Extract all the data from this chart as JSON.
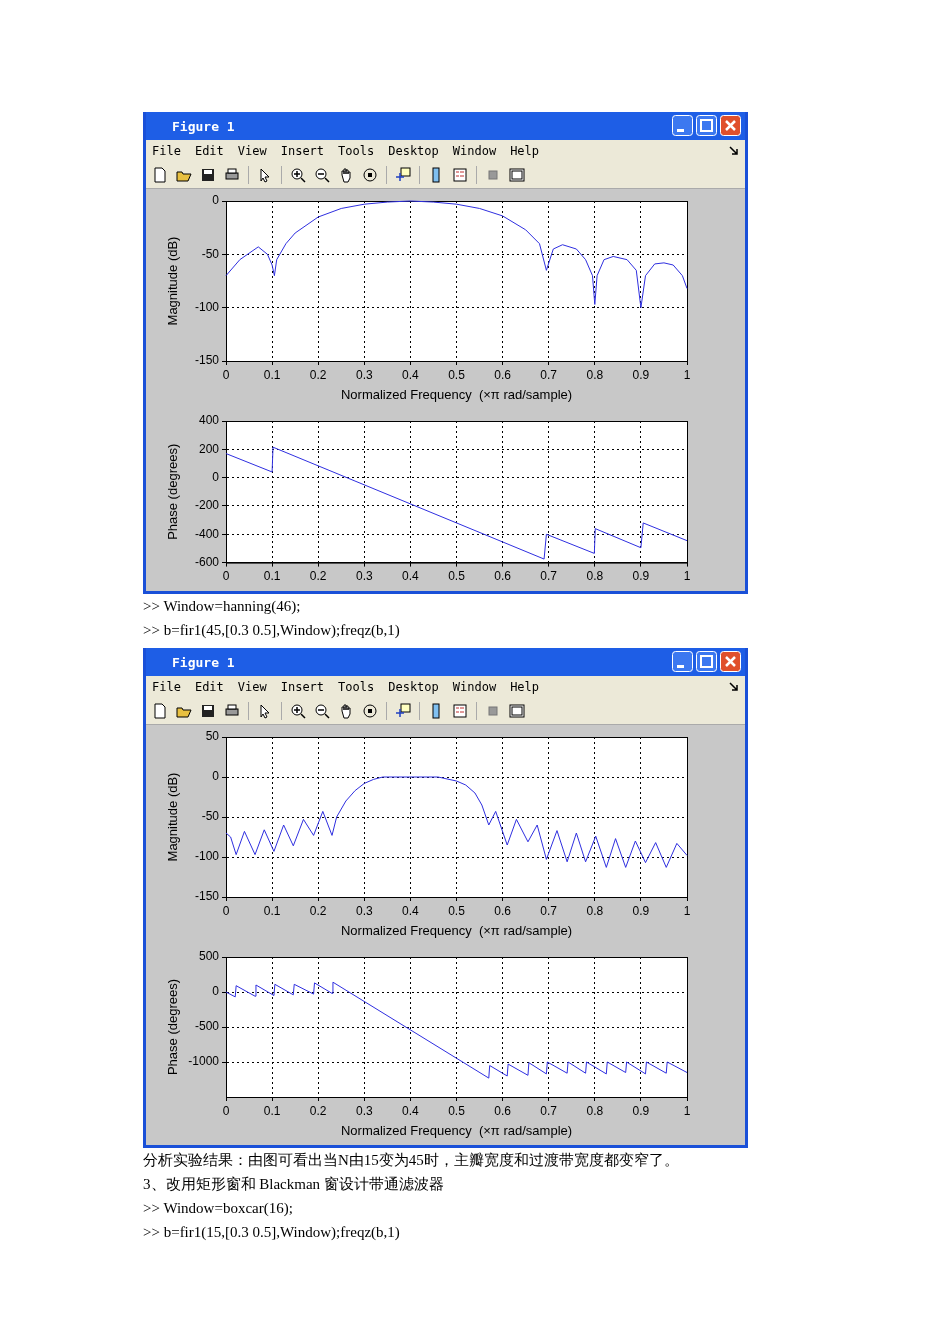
{
  "chart_data": [
    {
      "type": "line",
      "title": "Figure 1",
      "annotations": [
        "File",
        "Edit",
        "View",
        "Insert",
        "Tools",
        "Desktop",
        "Window",
        "Help"
      ],
      "ylabel": "Magnitude (dB)",
      "xlabel": "Normalized Frequency  (×π rad/sample)",
      "grid": true,
      "marker": "none",
      "xlim": [
        0,
        1
      ],
      "ylim": [
        -150,
        0
      ],
      "xticks": [
        0,
        0.1,
        0.2,
        0.3,
        0.4,
        0.5,
        0.6,
        0.7,
        0.8,
        0.9,
        1
      ],
      "yticks": [
        -150,
        -100,
        -50,
        0
      ],
      "x": [
        0,
        0.03,
        0.07,
        0.09,
        0.1,
        0.105,
        0.11,
        0.13,
        0.15,
        0.2,
        0.25,
        0.3,
        0.35,
        0.4,
        0.45,
        0.5,
        0.55,
        0.6,
        0.65,
        0.68,
        0.695,
        0.71,
        0.73,
        0.76,
        0.78,
        0.795,
        0.8,
        0.805,
        0.82,
        0.84,
        0.87,
        0.89,
        0.9,
        0.91,
        0.93,
        0.95,
        0.97,
        0.99,
        1
      ],
      "series": [
        {
          "color": "#2f2fe0",
          "values": [
            -70,
            -55,
            -43,
            -50,
            -60,
            -70,
            -55,
            -40,
            -30,
            -15,
            -7,
            -3,
            -1,
            0,
            -1,
            -3,
            -7,
            -14,
            -27,
            -40,
            -65,
            -45,
            -41,
            -45,
            -55,
            -70,
            -97,
            -70,
            -55,
            -52,
            -55,
            -65,
            -100,
            -70,
            -59,
            -58,
            -60,
            -70,
            -82
          ]
        }
      ]
    },
    {
      "type": "line",
      "annotations": [
        ">> Window=hanning(46);",
        ">> b=fir1(45,[0.3 0.5],Window);freqz(b,1)"
      ],
      "ylabel": "Phase (degrees)",
      "grid": true,
      "marker": "none",
      "xlim": [
        0,
        1
      ],
      "ylim": [
        -600,
        400
      ],
      "xticks": [
        0,
        0.1,
        0.2,
        0.3,
        0.4,
        0.5,
        0.6,
        0.7,
        0.8,
        0.9,
        1
      ],
      "yticks": [
        -600,
        -400,
        -200,
        0,
        200,
        400
      ],
      "x": [
        0,
        0.1,
        0.102,
        0.69,
        0.695,
        0.799,
        0.801,
        0.9,
        0.905,
        1
      ],
      "series": [
        {
          "color": "#2f2fe0",
          "values": [
            170,
            40,
            215,
            -575,
            -400,
            -535,
            -360,
            -495,
            -320,
            -445
          ]
        }
      ]
    },
    {
      "type": "line",
      "title": "Figure 1",
      "annotations": [
        "File",
        "Edit",
        "View",
        "Insert",
        "Tools",
        "Desktop",
        "Window",
        "Help"
      ],
      "ylabel": "Magnitude (dB)",
      "xlabel": "Normalized Frequency  (×π rad/sample)",
      "grid": true,
      "marker": "none",
      "xlim": [
        0,
        1
      ],
      "ylim": [
        -150,
        50
      ],
      "xticks": [
        0,
        0.1,
        0.2,
        0.3,
        0.4,
        0.5,
        0.6,
        0.7,
        0.8,
        0.9,
        1
      ],
      "yticks": [
        -150,
        -100,
        -50,
        0,
        50
      ],
      "x": [
        0,
        0.01,
        0.022,
        0.04,
        0.063,
        0.083,
        0.104,
        0.125,
        0.146,
        0.168,
        0.19,
        0.21,
        0.23,
        0.24,
        0.26,
        0.28,
        0.3,
        0.32,
        0.34,
        0.4,
        0.46,
        0.5,
        0.52,
        0.54,
        0.555,
        0.57,
        0.585,
        0.61,
        0.63,
        0.655,
        0.675,
        0.695,
        0.718,
        0.74,
        0.76,
        0.78,
        0.802,
        0.825,
        0.845,
        0.867,
        0.888,
        0.91,
        0.932,
        0.955,
        0.978,
        1
      ],
      "series": [
        {
          "color": "#2f2fe0",
          "values": [
            -70,
            -75,
            -97,
            -68,
            -97,
            -66,
            -93,
            -60,
            -86,
            -53,
            -73,
            -43,
            -73,
            -50,
            -30,
            -17,
            -8,
            -3,
            0,
            0,
            0,
            -5,
            -10,
            -20,
            -35,
            -60,
            -43,
            -85,
            -53,
            -81,
            -60,
            -103,
            -67,
            -106,
            -70,
            -106,
            -74,
            -113,
            -77,
            -113,
            -80,
            -107,
            -82,
            -113,
            -83,
            -98
          ]
        }
      ]
    },
    {
      "type": "line",
      "annotations": [
        "分析实验结果：由图可看出当N由15变为45时，主瓣宽度和过渡带宽度都变窄了。",
        "3、改用矩形窗和 Blackman 窗设计带通滤波器",
        ">> Window=boxcar(16);",
        ">> b=fir1(15,[0.3 0.5],Window);freqz(b,1)"
      ],
      "ylabel": "Phase (degrees)",
      "xlabel": "Normalized Frequency  (×π rad/sample)",
      "grid": true,
      "marker": "none",
      "xlim": [
        0,
        1
      ],
      "ylim": [
        -1500,
        500
      ],
      "xticks": [
        0,
        0.1,
        0.2,
        0.3,
        0.4,
        0.5,
        0.6,
        0.7,
        0.8,
        0.9,
        1
      ],
      "yticks": [
        -1000,
        -500,
        0,
        500
      ],
      "x": [
        0,
        0.02,
        0.022,
        0.063,
        0.065,
        0.104,
        0.106,
        0.146,
        0.148,
        0.19,
        0.192,
        0.23,
        0.232,
        0.57,
        0.572,
        0.61,
        0.612,
        0.655,
        0.657,
        0.695,
        0.697,
        0.74,
        0.742,
        0.78,
        0.782,
        0.825,
        0.827,
        0.867,
        0.869,
        0.91,
        0.912,
        0.955,
        0.957,
        1
      ],
      "series": [
        {
          "color": "#2f2fe0",
          "values": [
            0,
            -70,
            90,
            -60,
            100,
            -50,
            110,
            -40,
            110,
            -30,
            130,
            -20,
            140,
            -1230,
            -1050,
            -1200,
            -1030,
            -1190,
            -1010,
            -1170,
            -1000,
            -1160,
            -1000,
            -1160,
            -1000,
            -1170,
            -1000,
            -1150,
            -1000,
            -1170,
            -1000,
            -1160,
            -1000,
            -1150
          ]
        }
      ]
    }
  ]
}
